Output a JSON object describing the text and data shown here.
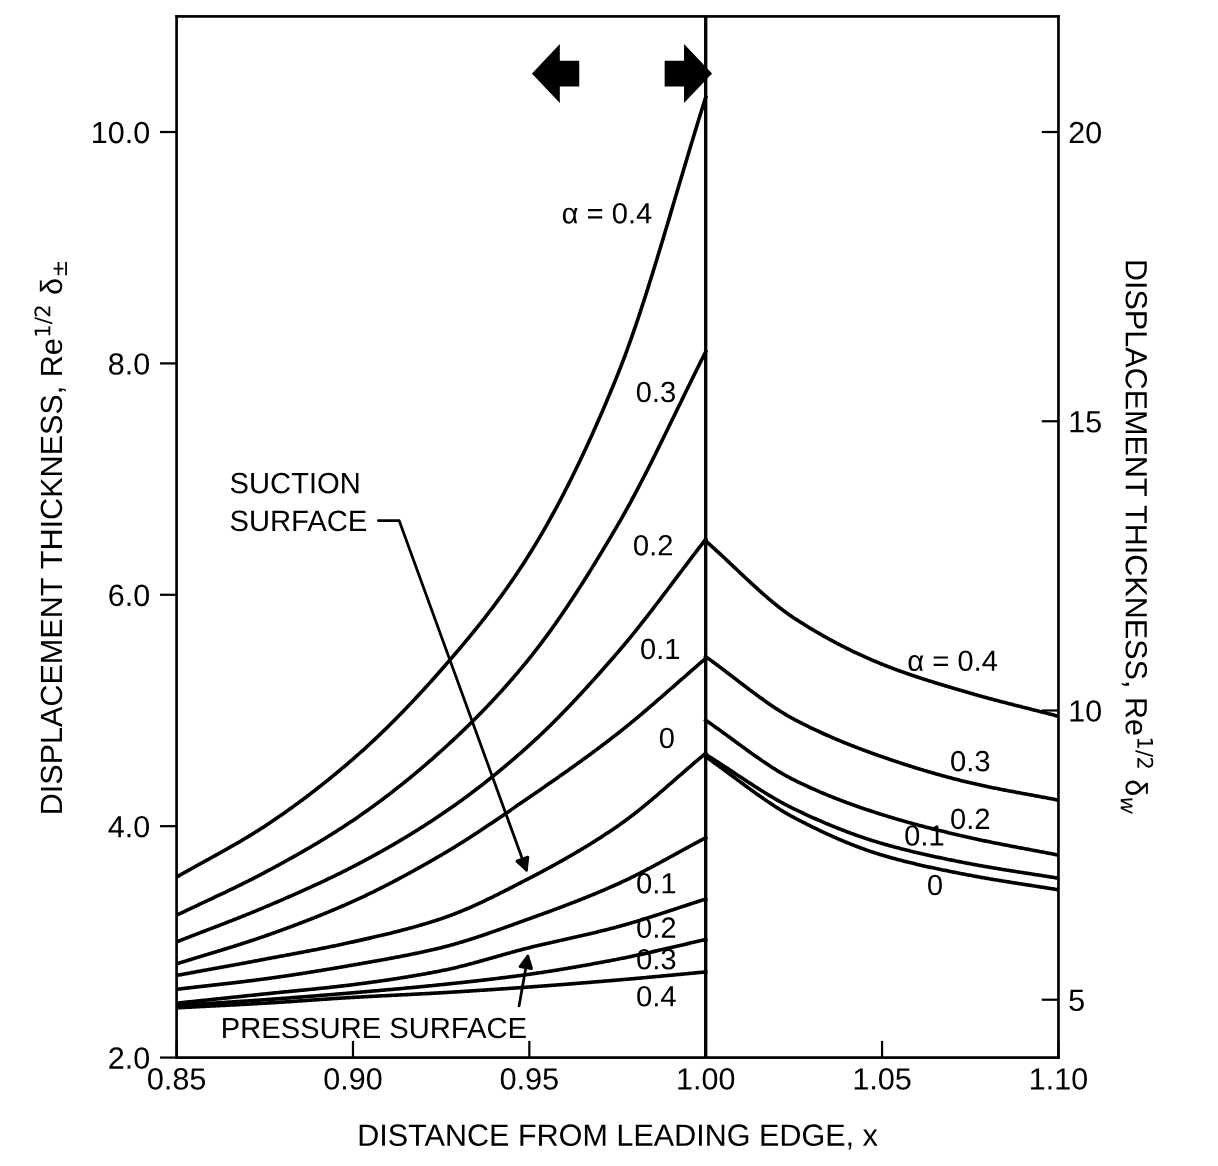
{
  "chart_data": {
    "type": "line",
    "xlabel": "DISTANCE FROM LEADING EDGE, x",
    "ylabel": "DISPLACEMENT THICKNESS, Re$^{1/2}$ δ$_{±}$",
    "y2label": "DISPLACEMENT THICKNESS, Re$^{1/2}$ δ$_{w}$",
    "xlim": [
      0.85,
      1.1
    ],
    "xticks": [
      {
        "value": 0.85,
        "label": "0.85"
      },
      {
        "value": 0.9,
        "label": "0.90"
      },
      {
        "value": 0.95,
        "label": "0.95"
      },
      {
        "value": 1.0,
        "label": "1.00"
      },
      {
        "value": 1.05,
        "label": "1.05"
      },
      {
        "value": 1.1,
        "label": "1.10"
      }
    ],
    "ylim": [
      2,
      11
    ],
    "yticks": [
      {
        "value": 2,
        "label": "2.0"
      },
      {
        "value": 4,
        "label": "4.0"
      },
      {
        "value": 6,
        "label": "6.0"
      },
      {
        "value": 8,
        "label": "8.0"
      },
      {
        "value": 10,
        "label": "10.0"
      }
    ],
    "y2lim": [
      4,
      22
    ],
    "y2ticks": [
      5,
      10,
      15,
      20
    ],
    "grid": false,
    "legend": false,
    "ref_lines": [
      {
        "axis": "x",
        "value": 1.0,
        "color": "#000000"
      }
    ],
    "annotations": [
      {
        "text": "SUCTION\nSURFACE",
        "x": 0.95,
        "y": 3.55
      },
      {
        "text": "PRESSURE SURFACE",
        "x": 0.95,
        "y": 2.95
      }
    ],
    "series": [
      {
        "name": "α = 0.4",
        "color": "#000000",
        "x": [
          0.85,
          0.875,
          0.9,
          0.925,
          0.95,
          0.975,
          1.0
        ],
        "values": [
          3.56,
          4.0,
          4.58,
          5.35,
          6.35,
          7.9,
          10.3
        ]
      },
      {
        "name": "0.3",
        "color": "#000000",
        "x": [
          0.85,
          0.875,
          0.9,
          0.925,
          0.95,
          0.975,
          1.0
        ],
        "values": [
          3.23,
          3.6,
          4.05,
          4.65,
          5.45,
          6.6,
          8.1
        ]
      },
      {
        "name": "0.2",
        "color": "#000000",
        "x": [
          0.85,
          0.875,
          0.9,
          0.925,
          0.95,
          0.975,
          1.0
        ],
        "values": [
          3.0,
          3.3,
          3.65,
          4.1,
          4.7,
          5.5,
          6.48
        ]
      },
      {
        "name": "0.1",
        "color": "#000000",
        "x": [
          0.85,
          0.875,
          0.9,
          0.925,
          0.95,
          0.975,
          1.0
        ],
        "values": [
          2.81,
          3.05,
          3.35,
          3.75,
          4.25,
          4.8,
          5.45
        ]
      },
      {
        "name": "0",
        "color": "#000000",
        "x": [
          0.85,
          0.875,
          0.9,
          0.925,
          0.95,
          0.975,
          1.0
        ],
        "values": [
          2.71,
          2.85,
          3.0,
          3.2,
          3.55,
          4.0,
          4.63
        ]
      },
      {
        "name": "0.1",
        "color": "#000000",
        "x": [
          0.85,
          0.875,
          0.9,
          0.925,
          0.95,
          0.975,
          1.0
        ],
        "values": [
          2.59,
          2.68,
          2.8,
          2.95,
          3.2,
          3.5,
          3.9
        ]
      },
      {
        "name": "0.2",
        "color": "#000000",
        "x": [
          0.85,
          0.875,
          0.9,
          0.925,
          0.95,
          0.975,
          1.0
        ],
        "values": [
          2.47,
          2.55,
          2.63,
          2.75,
          2.95,
          3.13,
          3.37
        ]
      },
      {
        "name": "0.3",
        "color": "#000000",
        "x": [
          0.85,
          0.875,
          0.9,
          0.925,
          0.95,
          0.975,
          1.0
        ],
        "values": [
          2.45,
          2.5,
          2.56,
          2.63,
          2.72,
          2.85,
          3.02
        ]
      },
      {
        "name": "0.4",
        "color": "#000000",
        "x": [
          0.85,
          0.875,
          0.9,
          0.925,
          0.95,
          0.975,
          1.0
        ],
        "values": [
          2.43,
          2.47,
          2.52,
          2.56,
          2.61,
          2.67,
          2.74
        ]
      },
      {
        "name": "α = 0.4",
        "color": "#000000",
        "axis": "y2",
        "x": [
          1.0,
          1.025,
          1.05,
          1.075,
          1.1
        ],
        "values": [
          12.93,
          11.6,
          10.8,
          10.3,
          9.9
        ]
      },
      {
        "name": "0.3",
        "color": "#000000",
        "axis": "y2",
        "x": [
          1.0,
          1.025,
          1.05,
          1.075,
          1.1
        ],
        "values": [
          10.93,
          9.85,
          9.2,
          8.75,
          8.45
        ]
      },
      {
        "name": "0.2",
        "color": "#000000",
        "axis": "y2",
        "x": [
          1.0,
          1.025,
          1.05,
          1.075,
          1.1
        ],
        "values": [
          9.83,
          8.8,
          8.2,
          7.8,
          7.5
        ]
      },
      {
        "name": "0.1",
        "color": "#000000",
        "axis": "y2",
        "x": [
          1.0,
          1.025,
          1.05,
          1.075,
          1.1
        ],
        "values": [
          9.24,
          8.3,
          7.7,
          7.35,
          7.1
        ]
      },
      {
        "name": "0",
        "color": "#000000",
        "axis": "y2",
        "x": [
          1.0,
          1.025,
          1.05,
          1.075,
          1.1
        ],
        "values": [
          9.2,
          8.15,
          7.5,
          7.15,
          6.9
        ]
      }
    ]
  }
}
